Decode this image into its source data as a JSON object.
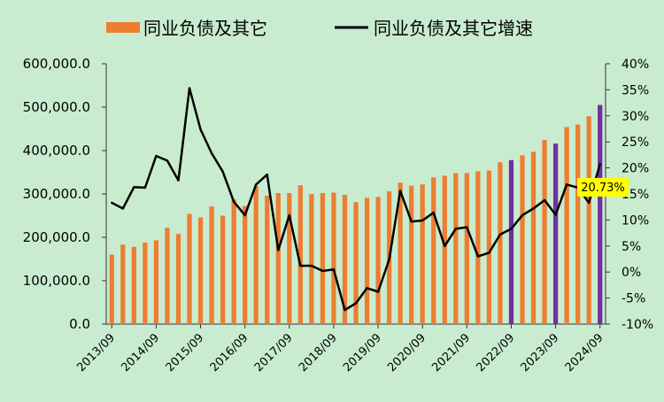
{
  "chart_data": {
    "type": "bar",
    "title": "",
    "series": [
      {
        "name": "同业负债及其它",
        "type": "bar",
        "axis": "left",
        "color": "#ED7D31",
        "highlight_color": "#7030A0",
        "values": [
          160000,
          183000,
          178000,
          188000,
          193000,
          222000,
          208000,
          254000,
          246000,
          271000,
          250000,
          287000,
          272000,
          318000,
          296000,
          302000,
          302000,
          320000,
          300000,
          302000,
          303000,
          298000,
          281000,
          291000,
          293000,
          306000,
          326000,
          319000,
          322000,
          338000,
          342000,
          348000,
          348000,
          352000,
          354000,
          373000,
          378000,
          389000,
          397000,
          424000,
          416000,
          454000,
          460000,
          479000,
          505000
        ],
        "highlight_indices": [
          36,
          40,
          44
        ]
      },
      {
        "name": "同业负债及其它增速",
        "type": "line",
        "axis": "right",
        "color": "#000000",
        "values": [
          13.3,
          12.2,
          16.3,
          16.2,
          22.3,
          21.4,
          17.6,
          35.3,
          27.4,
          22.8,
          19.3,
          13.5,
          10.9,
          16.8,
          18.7,
          4.2,
          10.9,
          1.2,
          1.2,
          0.2,
          0.5,
          -7.3,
          -6.0,
          -3.1,
          -3.8,
          2.4,
          15.6,
          9.7,
          9.9,
          11.4,
          5.0,
          8.3,
          8.6,
          3.0,
          3.7,
          7.2,
          8.3,
          10.9,
          12.2,
          13.8,
          11.0,
          16.8,
          16.2,
          13.3,
          20.73
        ]
      }
    ],
    "x_tick_labels": [
      "2013/09",
      "2014/09",
      "2015/09",
      "2016/09",
      "2017/09",
      "2018/09",
      "2019/09",
      "2020/09",
      "2021/09",
      "2022/09",
      "2023/09",
      "2024/09"
    ],
    "left_axis": {
      "ylim": [
        0,
        600000
      ],
      "tick_labels": [
        "0.0",
        "100,000.0",
        "200,000.0",
        "300,000.0",
        "400,000.0",
        "500,000.0",
        "600,000.0"
      ]
    },
    "right_axis": {
      "ylim": [
        -10,
        40
      ],
      "tick_labels": [
        "-10%",
        "-5%",
        "0%",
        "5%",
        "10%",
        "15%",
        "20%",
        "25%",
        "30%",
        "35%",
        "40%"
      ]
    },
    "annotation": {
      "text": "20.73%",
      "background": "#FFFF00"
    },
    "legend": "top",
    "grid": false,
    "colors": {
      "background": "#C9ECD0",
      "bar": "#ED7D31",
      "bar_highlight": "#7030A0",
      "line": "#000000"
    }
  }
}
